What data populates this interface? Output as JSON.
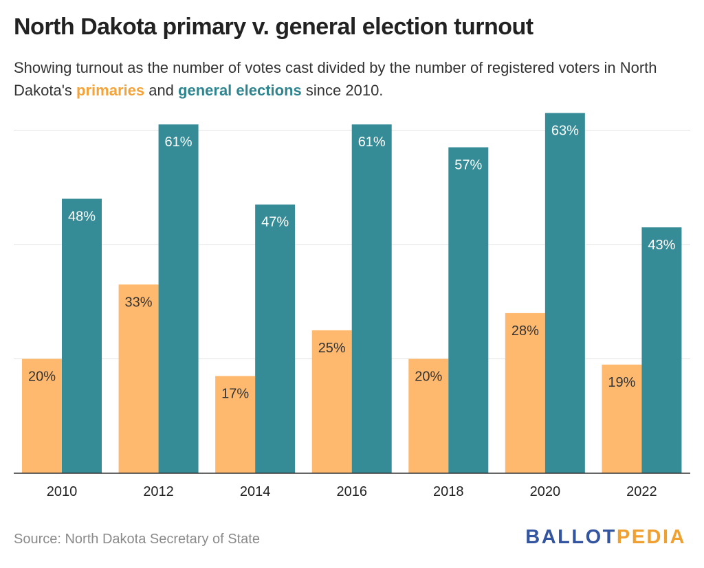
{
  "header": {
    "title": "North Dakota primary v. general election turnout",
    "subtitle_before": "Showing turnout as the number of votes cast divided by the number of registered voters in North Dakota's ",
    "subtitle_primary": "primaries",
    "subtitle_middle": " and ",
    "subtitle_general": "general elections",
    "subtitle_after": " since 2010."
  },
  "footer": {
    "source": "Source: North Dakota Secretary of State",
    "logo_part1": "BALLOT",
    "logo_part2": "PEDIA"
  },
  "colors": {
    "primary": "#ffb96e",
    "general": "#368c96",
    "primary_text": "#f5a338",
    "general_text": "#2e858e",
    "grid": "#e2e2e2",
    "axis": "#333333"
  },
  "chart_data": {
    "type": "bar",
    "categories": [
      "2010",
      "2012",
      "2014",
      "2016",
      "2018",
      "2020",
      "2022"
    ],
    "series": [
      {
        "name": "primaries",
        "values": [
          20,
          33,
          17,
          25,
          20,
          28,
          19
        ],
        "labels": [
          "20%",
          "33%",
          "17%",
          "25%",
          "20%",
          "28%",
          "19%"
        ]
      },
      {
        "name": "general elections",
        "values": [
          48,
          61,
          47,
          61,
          57,
          63,
          43
        ],
        "labels": [
          "48%",
          "61%",
          "47%",
          "61%",
          "57%",
          "63%",
          "43%"
        ]
      }
    ],
    "ylim": [
      0,
      60
    ],
    "gridlines": [
      20,
      40,
      60
    ],
    "grid": true,
    "legend": "inline-subtitle"
  }
}
